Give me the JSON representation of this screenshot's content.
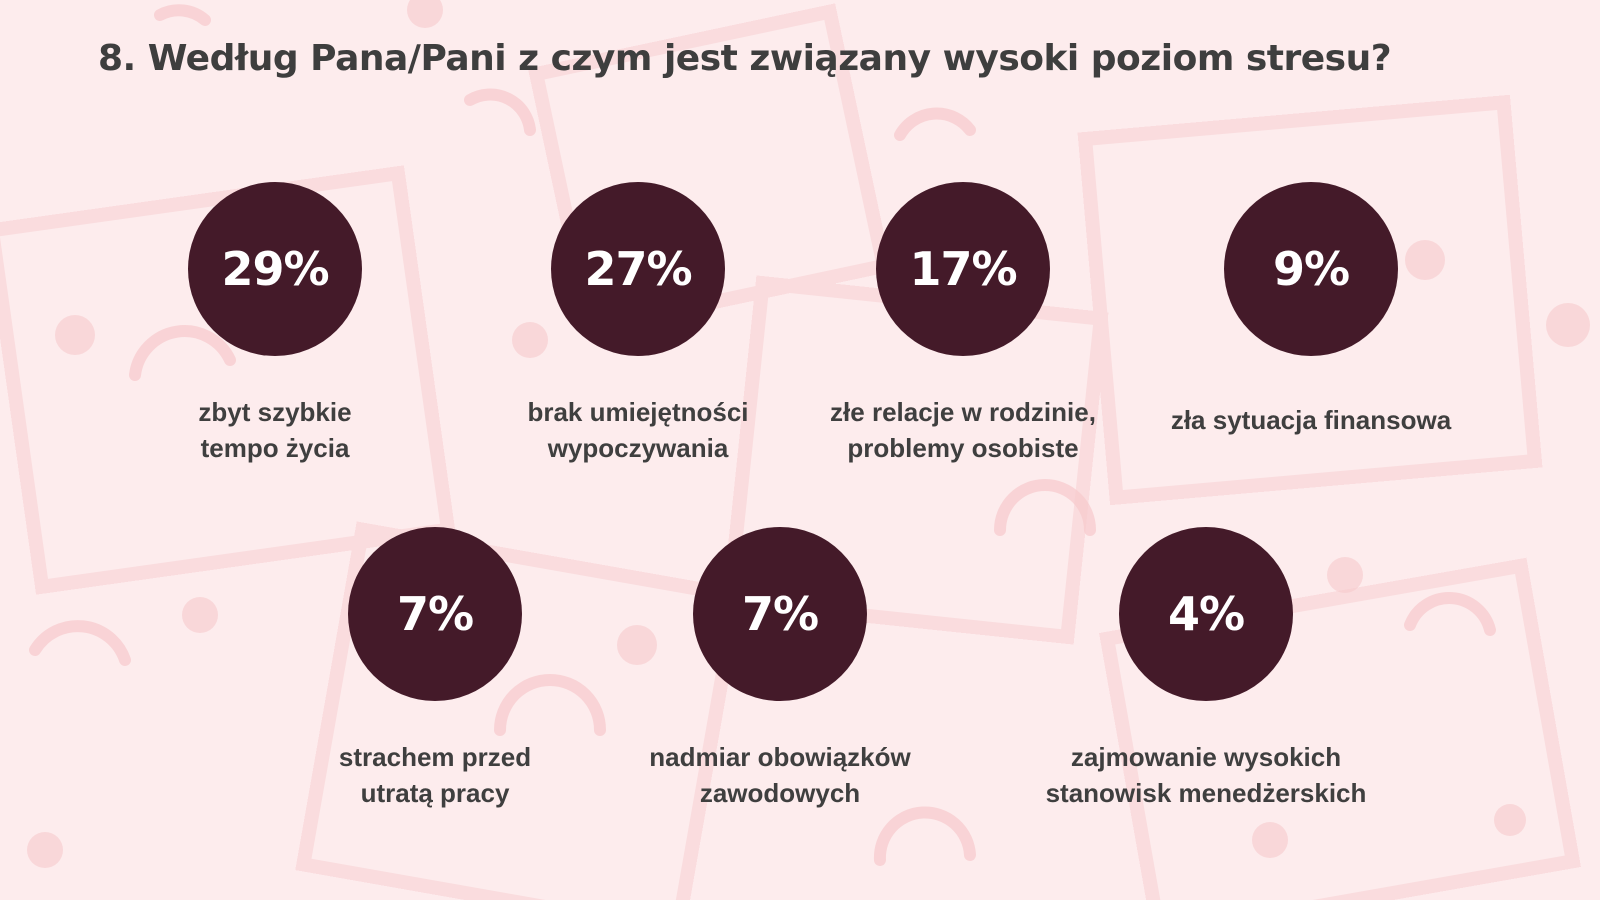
{
  "page": {
    "title": "8. Według Pana/Pani z czym jest związany wysoki poziom stresu?"
  },
  "colors": {
    "background": "#fdeced",
    "circle": "#441a29",
    "percent_text": "#ffffff",
    "label_text": "#3f3f3f",
    "decoration": "#f6c9cc"
  },
  "chart_data": {
    "type": "bar",
    "title": "8. Według Pana/Pani z czym jest związany wysoki poziom stresu?",
    "unit": "%",
    "categories": [
      "zbyt szybkie tempo życia",
      "brak umiejętności wypoczywania",
      "złe relacje w rodzinie, problemy osobiste",
      "zła sytuacja finansowa",
      "strachem przed utratą pracy",
      "nadmiar obowiązków zawodowych",
      "zajmowanie wysokich stanowisk menedżerskich"
    ],
    "values": [
      29,
      27,
      17,
      9,
      7,
      7,
      4
    ],
    "items": [
      {
        "percent": "29%",
        "label_lines": [
          "zbyt szybkie",
          "tempo życia"
        ]
      },
      {
        "percent": "27%",
        "label_lines": [
          "brak umiejętności",
          "wypoczywania"
        ]
      },
      {
        "percent": "17%",
        "label_lines": [
          "złe relacje w rodzinie,",
          "problemy osobiste"
        ]
      },
      {
        "percent": "9%",
        "label_lines": [
          "zła sytuacja finansowa"
        ]
      },
      {
        "percent": "7%",
        "label_lines": [
          "strachem przed",
          "utratą pracy"
        ]
      },
      {
        "percent": "7%",
        "label_lines": [
          "nadmiar obowiązków",
          "zawodowych"
        ]
      },
      {
        "percent": "4%",
        "label_lines": [
          "zajmowanie wysokich",
          "stanowisk menedżerskich"
        ]
      }
    ]
  }
}
